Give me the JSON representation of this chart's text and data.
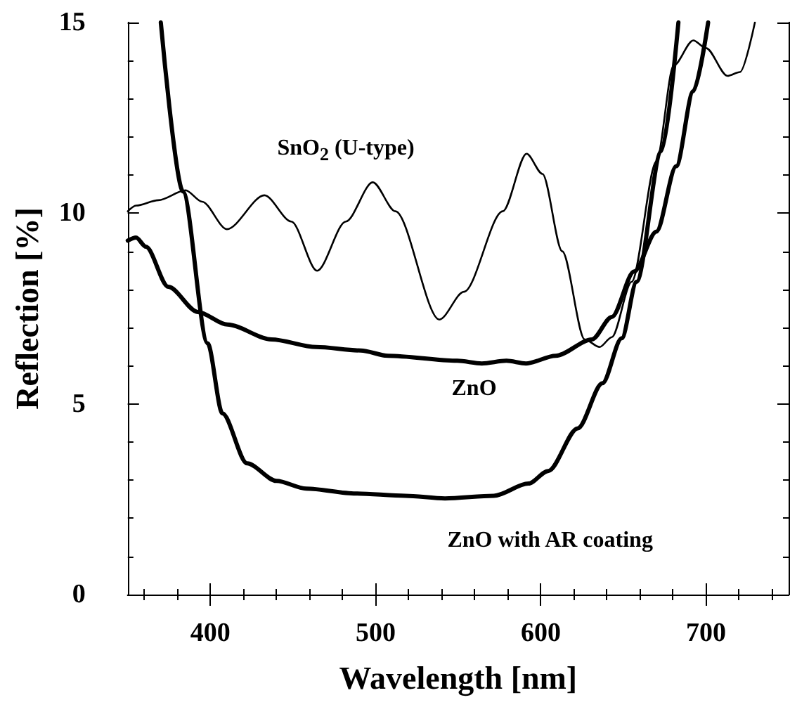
{
  "chart_data": {
    "type": "line",
    "xlabel": "Wavelength [nm]",
    "ylabel": "Reflection [%]",
    "xlim": [
      350,
      750
    ],
    "xticks": [
      400,
      500,
      600,
      700
    ],
    "ylim": [
      0,
      15
    ],
    "yticks": [
      0,
      5,
      10,
      15
    ],
    "grid": false,
    "marker": "none",
    "line_style": "solid",
    "series": [
      {
        "name": "SnO$_{2}$ (U-type)",
        "color": "#000000",
        "x": [
          350,
          355,
          368.5,
          385,
          395,
          410,
          432.7,
          449,
          464.6,
          482,
          498.3,
          512,
          538.6,
          553.5,
          577,
          591.4,
          601,
          613,
          626.6,
          635.6,
          643,
          655,
          670,
          680.4,
          692.3,
          700,
          713,
          720.6,
          729.6
        ],
        "values": [
          10.05,
          10.2,
          10.34,
          10.6,
          10.3,
          9.58,
          10.47,
          9.78,
          8.49,
          9.78,
          10.81,
          10.05,
          7.21,
          7.94,
          10.05,
          11.56,
          11.03,
          9.0,
          6.69,
          6.49,
          6.75,
          8.2,
          11.36,
          13.87,
          14.53,
          14.33,
          13.6,
          13.7,
          15
        ]
      },
      {
        "name": "ZnO",
        "color": "#000000",
        "x": [
          350,
          355,
          361,
          374.5,
          392.4,
          410.3,
          437,
          464,
          491,
          507.6,
          549.4,
          564.3,
          579.2,
          591,
          609,
          631,
          643,
          656.5,
          670,
          682,
          692.3,
          701.3
        ],
        "values": [
          9.28,
          9.36,
          9.12,
          8.07,
          7.41,
          7.08,
          6.69,
          6.49,
          6.4,
          6.26,
          6.13,
          6.06,
          6.13,
          6.06,
          6.26,
          6.69,
          7.28,
          8.47,
          9.52,
          11.23,
          13.2,
          15
        ]
      },
      {
        "name": "ZnO with AR coating",
        "color": "#000000",
        "x": [
          370,
          383.4,
          398.3,
          407.3,
          422.2,
          440,
          458,
          488,
          518,
          542,
          571.6,
          592.5,
          604.5,
          622.4,
          637.3,
          649,
          658,
          673,
          683.3
        ],
        "values": [
          15,
          10.57,
          6.59,
          4.75,
          3.44,
          2.98,
          2.78,
          2.65,
          2.59,
          2.52,
          2.59,
          2.91,
          3.24,
          4.36,
          5.54,
          6.72,
          8.2,
          11.63,
          15
        ]
      }
    ]
  }
}
